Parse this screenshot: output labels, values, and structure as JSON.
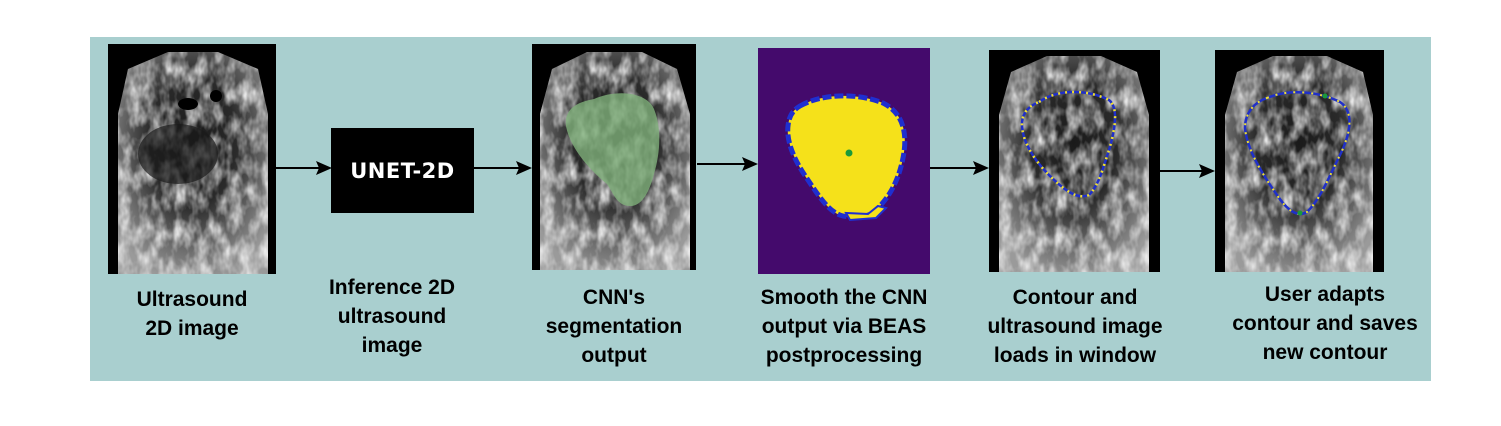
{
  "nodes": [
    {
      "id": "ultrasound",
      "caption": [
        "Ultrasound",
        "2D image"
      ]
    },
    {
      "id": "unet",
      "box_label": "UNET-2D",
      "caption": [
        "Inference 2D",
        "ultrasound",
        "image"
      ]
    },
    {
      "id": "cnn",
      "caption": [
        "CNN's",
        "segmentation",
        "output"
      ]
    },
    {
      "id": "beas",
      "caption": [
        "Smooth the CNN",
        "output via BEAS",
        "postprocessing"
      ]
    },
    {
      "id": "contour",
      "caption": [
        "Contour and",
        "ultrasound image",
        "loads in window"
      ]
    },
    {
      "id": "user",
      "caption": [
        "User adapts",
        "contour and saves",
        "new contour"
      ]
    }
  ],
  "colors": {
    "panel_bg": "#a9cfcf",
    "segmentation_overlay": "#7fb07a",
    "beas_background": "#440a6c",
    "beas_fill": "#f5e11a",
    "beas_outline": "#1f2fd0",
    "contour_dots": "#f0e030",
    "contour_line": "#2030c8",
    "center_point": "#1a9a3a"
  }
}
